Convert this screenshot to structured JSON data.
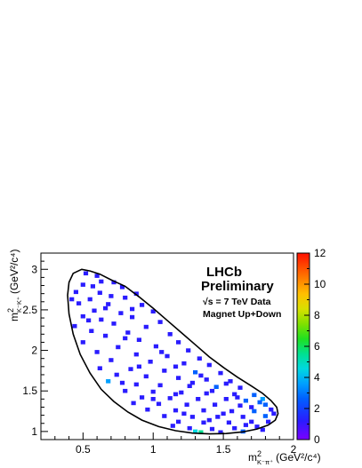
{
  "chart_data": {
    "type": "heatmap",
    "title": "",
    "xlabel_main": "m",
    "xlabel_sup": "2",
    "xlabel_sub": "K⁻π⁺",
    "xlabel_units": "(GeV²/c⁴)",
    "ylabel_main": "m",
    "ylabel_sup": "2",
    "ylabel_sub": "K⁻K⁺",
    "ylabel_units": "(GeV²/c⁴)",
    "xlim": [
      0.2,
      2.0
    ],
    "ylim": [
      0.9,
      3.2
    ],
    "xticks": [
      {
        "v": 0.5,
        "label": "0.5"
      },
      {
        "v": 1.0,
        "label": "1"
      },
      {
        "v": 1.5,
        "label": "1.5"
      },
      {
        "v": 2.0,
        "label": "2"
      }
    ],
    "yticks": [
      {
        "v": 1.0,
        "label": "1"
      },
      {
        "v": 1.5,
        "label": "1.5"
      },
      {
        "v": 2.0,
        "label": "2"
      },
      {
        "v": 2.5,
        "label": "2.5"
      },
      {
        "v": 3.0,
        "label": "3"
      }
    ],
    "zlim": [
      0,
      12
    ],
    "zticks": [
      {
        "v": 0,
        "label": "0"
      },
      {
        "v": 2,
        "label": "2"
      },
      {
        "v": 4,
        "label": "4"
      },
      {
        "v": 6,
        "label": "6"
      },
      {
        "v": 8,
        "label": "8"
      },
      {
        "v": 10,
        "label": "10"
      },
      {
        "v": 12,
        "label": "12"
      }
    ],
    "legend": {
      "line1": "LHCb",
      "line2": "Preliminary",
      "line3": "√s = 7 TeV Data",
      "line4": "Magnet Up+Down"
    },
    "boundary": [
      [
        0.49,
        3.0
      ],
      [
        0.55,
        2.98
      ],
      [
        0.62,
        2.94
      ],
      [
        0.7,
        2.87
      ],
      [
        0.8,
        2.79
      ],
      [
        0.9,
        2.66
      ],
      [
        1.0,
        2.52
      ],
      [
        1.1,
        2.37
      ],
      [
        1.2,
        2.22
      ],
      [
        1.3,
        2.07
      ],
      [
        1.4,
        1.92
      ],
      [
        1.5,
        1.79
      ],
      [
        1.6,
        1.67
      ],
      [
        1.7,
        1.56
      ],
      [
        1.78,
        1.47
      ],
      [
        1.84,
        1.38
      ],
      [
        1.88,
        1.3
      ],
      [
        1.89,
        1.22
      ],
      [
        1.87,
        1.14
      ],
      [
        1.82,
        1.08
      ],
      [
        1.74,
        1.03
      ],
      [
        1.64,
        0.995
      ],
      [
        1.52,
        0.975
      ],
      [
        1.4,
        0.97
      ],
      [
        1.28,
        0.98
      ],
      [
        1.16,
        1.01
      ],
      [
        1.04,
        1.06
      ],
      [
        0.92,
        1.14
      ],
      [
        0.82,
        1.24
      ],
      [
        0.72,
        1.37
      ],
      [
        0.63,
        1.52
      ],
      [
        0.55,
        1.72
      ],
      [
        0.48,
        1.95
      ],
      [
        0.43,
        2.2
      ],
      [
        0.4,
        2.45
      ],
      [
        0.39,
        2.68
      ],
      [
        0.4,
        2.84
      ],
      [
        0.43,
        2.95
      ],
      [
        0.49,
        3.0
      ]
    ],
    "bins": [
      [
        0.52,
        2.95,
        1
      ],
      [
        0.6,
        2.92,
        1
      ],
      [
        0.63,
        2.85,
        1
      ],
      [
        0.72,
        2.84,
        1
      ],
      [
        0.5,
        2.81,
        1
      ],
      [
        0.57,
        2.79,
        1
      ],
      [
        0.78,
        2.78,
        1
      ],
      [
        0.88,
        2.7,
        1
      ],
      [
        0.45,
        2.72,
        1
      ],
      [
        0.62,
        2.71,
        1
      ],
      [
        0.7,
        2.67,
        1
      ],
      [
        0.8,
        2.65,
        1
      ],
      [
        0.55,
        2.63,
        1
      ],
      [
        0.47,
        2.58,
        1
      ],
      [
        0.68,
        2.57,
        1
      ],
      [
        0.92,
        2.56,
        1
      ],
      [
        1.0,
        2.48,
        1
      ],
      [
        0.58,
        2.49,
        1
      ],
      [
        0.77,
        2.46,
        1
      ],
      [
        0.5,
        2.42,
        1
      ],
      [
        0.85,
        2.41,
        1
      ],
      [
        0.63,
        2.38,
        1
      ],
      [
        1.05,
        2.35,
        1
      ],
      [
        0.72,
        2.33,
        1
      ],
      [
        0.44,
        2.3,
        1
      ],
      [
        0.95,
        2.29,
        1
      ],
      [
        0.56,
        2.24,
        1
      ],
      [
        0.82,
        2.22,
        1
      ],
      [
        1.12,
        2.2,
        1
      ],
      [
        0.66,
        2.18,
        1
      ],
      [
        0.9,
        2.13,
        1
      ],
      [
        1.18,
        2.1,
        1
      ],
      [
        0.5,
        2.1,
        1
      ],
      [
        1.02,
        2.05,
        1
      ],
      [
        0.75,
        2.04,
        1
      ],
      [
        1.25,
        2.0,
        1
      ],
      [
        0.6,
        1.98,
        1
      ],
      [
        0.88,
        1.95,
        1
      ],
      [
        1.1,
        1.93,
        1
      ],
      [
        1.33,
        1.9,
        1
      ],
      [
        0.7,
        1.88,
        1
      ],
      [
        0.98,
        1.86,
        1
      ],
      [
        1.22,
        1.84,
        1
      ],
      [
        1.4,
        1.82,
        1
      ],
      [
        0.62,
        1.78,
        1
      ],
      [
        0.84,
        1.77,
        1
      ],
      [
        1.08,
        1.75,
        1
      ],
      [
        1.3,
        1.73,
        2
      ],
      [
        1.48,
        1.72,
        1
      ],
      [
        0.74,
        1.7,
        1
      ],
      [
        0.95,
        1.68,
        1
      ],
      [
        1.18,
        1.66,
        1
      ],
      [
        1.38,
        1.64,
        1
      ],
      [
        1.55,
        1.62,
        1
      ],
      [
        0.68,
        1.62,
        3
      ],
      [
        0.88,
        1.58,
        1
      ],
      [
        1.05,
        1.57,
        1
      ],
      [
        1.26,
        1.56,
        1
      ],
      [
        1.45,
        1.55,
        2
      ],
      [
        1.62,
        1.54,
        1
      ],
      [
        0.8,
        1.5,
        1
      ],
      [
        1.0,
        1.49,
        1
      ],
      [
        1.2,
        1.48,
        1
      ],
      [
        1.38,
        1.47,
        1
      ],
      [
        1.58,
        1.46,
        1
      ],
      [
        1.72,
        1.45,
        2
      ],
      [
        0.92,
        1.42,
        1
      ],
      [
        1.12,
        1.41,
        1
      ],
      [
        1.32,
        1.4,
        1
      ],
      [
        1.52,
        1.4,
        1
      ],
      [
        1.66,
        1.38,
        2
      ],
      [
        1.78,
        1.4,
        3
      ],
      [
        0.86,
        1.35,
        1
      ],
      [
        1.04,
        1.34,
        1
      ],
      [
        1.24,
        1.33,
        1
      ],
      [
        1.44,
        1.33,
        1
      ],
      [
        1.62,
        1.32,
        1
      ],
      [
        1.8,
        1.33,
        2
      ],
      [
        0.96,
        1.27,
        1
      ],
      [
        1.16,
        1.26,
        1
      ],
      [
        1.36,
        1.26,
        1
      ],
      [
        1.56,
        1.25,
        1
      ],
      [
        1.72,
        1.25,
        2
      ],
      [
        1.84,
        1.27,
        1
      ],
      [
        1.08,
        1.19,
        1
      ],
      [
        1.28,
        1.18,
        1
      ],
      [
        1.46,
        1.18,
        1
      ],
      [
        1.64,
        1.18,
        1
      ],
      [
        1.8,
        1.19,
        2
      ],
      [
        1.18,
        1.12,
        1
      ],
      [
        1.36,
        1.11,
        1
      ],
      [
        1.54,
        1.11,
        1
      ],
      [
        1.7,
        1.12,
        1
      ],
      [
        1.82,
        1.12,
        1
      ],
      [
        1.26,
        1.04,
        1
      ],
      [
        1.42,
        1.03,
        1
      ],
      [
        1.58,
        1.04,
        1
      ],
      [
        1.74,
        1.06,
        1
      ],
      [
        1.3,
        1.0,
        4
      ],
      [
        1.34,
        0.99,
        5
      ],
      [
        1.48,
        0.99,
        1
      ],
      [
        1.64,
        1.0,
        2
      ],
      [
        1.78,
        1.02,
        1
      ],
      [
        1.14,
        1.07,
        1
      ],
      [
        1.52,
        1.59,
        1
      ],
      [
        1.34,
        1.69,
        1
      ],
      [
        1.16,
        1.8,
        1
      ],
      [
        1.06,
        1.98,
        1
      ],
      [
        0.8,
        2.15,
        1
      ],
      [
        0.54,
        2.37,
        1
      ],
      [
        0.66,
        2.52,
        1
      ],
      [
        0.42,
        2.63,
        1
      ],
      [
        0.85,
        2.51,
        1
      ],
      [
        1.42,
        1.5,
        1
      ],
      [
        1.6,
        1.42,
        1
      ],
      [
        1.7,
        1.3,
        1
      ],
      [
        1.5,
        1.22,
        1
      ],
      [
        1.4,
        1.14,
        1
      ],
      [
        1.22,
        1.22,
        1
      ],
      [
        1.0,
        1.4,
        1
      ],
      [
        0.78,
        1.6,
        1
      ],
      [
        0.9,
        1.8,
        1
      ],
      [
        1.28,
        1.6,
        1
      ],
      [
        1.16,
        1.46,
        1
      ],
      [
        1.76,
        1.36,
        2
      ],
      [
        1.86,
        1.22,
        1
      ],
      [
        1.66,
        1.08,
        1
      ]
    ]
  }
}
